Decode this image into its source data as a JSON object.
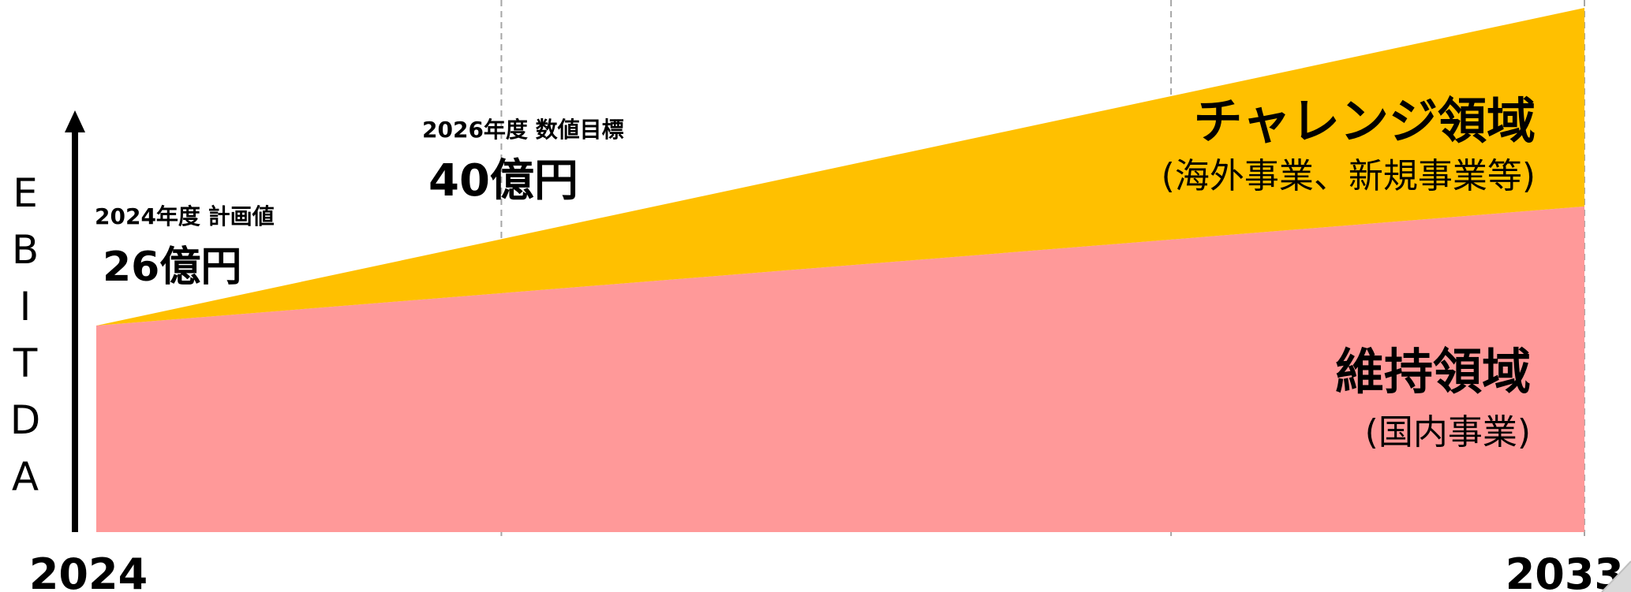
{
  "chart_data": {
    "type": "area",
    "stacked": true,
    "ylabel": "EBITDA",
    "x_tick_labels": [
      "2024",
      "2033"
    ],
    "x_range": [
      2024,
      2033
    ],
    "gridlines_vertical": true,
    "legend": "none",
    "series": [
      {
        "name": "維持領域",
        "sublabel": "(国内事業)",
        "color": "#FF9999",
        "x": [
          2024,
          2033
        ],
        "relative_values": [
          26,
          41
        ]
      },
      {
        "name": "チャレンジ領域",
        "sublabel": "(海外事業、新規事業等)",
        "color": "#FFC000",
        "x": [
          2024,
          2033
        ],
        "relative_values": [
          0,
          25
        ]
      }
    ],
    "annotations": [
      {
        "year": 2024,
        "label": "2024年度 計画値",
        "value_text": "26億円"
      },
      {
        "year": 2026,
        "label": "2026年度 数値目標",
        "value_text": "40億円"
      }
    ]
  }
}
